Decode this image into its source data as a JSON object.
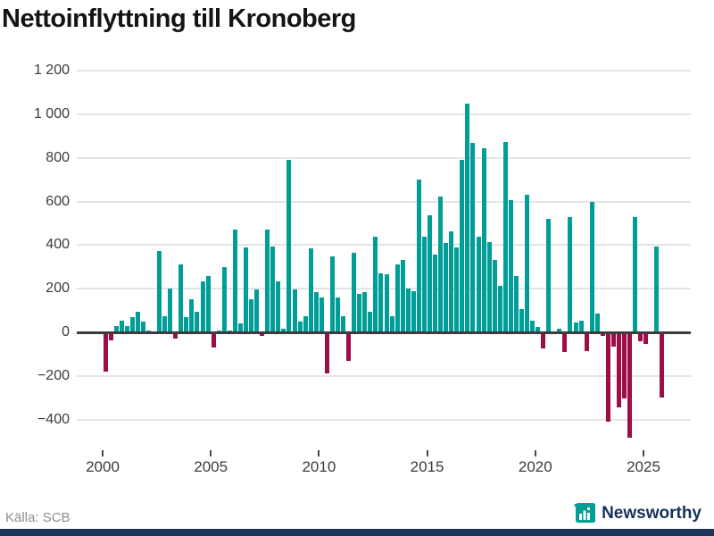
{
  "chart": {
    "title": "Nettoinflyttning till Kronoberg",
    "colors": {
      "positive_bar": "#009E96",
      "negative_bar": "#9E0D47",
      "zero_line": "#3c3c3c",
      "gridline": "#e4e4e4",
      "axis_text": "#3a3a3a",
      "title_text": "#141414",
      "source_text": "#8e8e8e",
      "brand_navy": "#16325b"
    },
    "y_axis": {
      "tick_labels": [
        "1 200",
        "1 000",
        "800",
        "600",
        "400",
        "200",
        "0",
        "−200",
        "−400"
      ],
      "tick_values": [
        1200,
        1000,
        800,
        600,
        400,
        200,
        0,
        -200,
        -400
      ]
    },
    "x_axis": {
      "tick_labels": [
        "2000",
        "2005",
        "2010",
        "2015",
        "2020",
        "2025"
      ],
      "tick_values": [
        2000,
        2005,
        2010,
        2015,
        2020,
        2025
      ]
    }
  },
  "chart_data": {
    "type": "bar",
    "title": "Nettoinflyttning till Kronoberg",
    "xlabel": "",
    "ylabel": "",
    "frequency": "quarterly",
    "ylim": [
      -500,
      1250
    ],
    "grid": "horizontal",
    "legend": "none",
    "categories": [
      "2000 Q1",
      "2000 Q2",
      "2000 Q3",
      "2000 Q4",
      "2001 Q1",
      "2001 Q2",
      "2001 Q3",
      "2001 Q4",
      "2002 Q1",
      "2002 Q2",
      "2002 Q3",
      "2002 Q4",
      "2003 Q1",
      "2003 Q2",
      "2003 Q3",
      "2003 Q4",
      "2004 Q1",
      "2004 Q2",
      "2004 Q3",
      "2004 Q4",
      "2005 Q1",
      "2005 Q2",
      "2005 Q3",
      "2005 Q4",
      "2006 Q1",
      "2006 Q2",
      "2006 Q3",
      "2006 Q4",
      "2007 Q1",
      "2007 Q2",
      "2007 Q3",
      "2007 Q4",
      "2008 Q1",
      "2008 Q2",
      "2008 Q3",
      "2008 Q4",
      "2009 Q1",
      "2009 Q2",
      "2009 Q3",
      "2009 Q4",
      "2010 Q1",
      "2010 Q2",
      "2010 Q3",
      "2010 Q4",
      "2011 Q1",
      "2011 Q2",
      "2011 Q3",
      "2011 Q4",
      "2012 Q1",
      "2012 Q2",
      "2012 Q3",
      "2012 Q4",
      "2013 Q1",
      "2013 Q2",
      "2013 Q3",
      "2013 Q4",
      "2014 Q1",
      "2014 Q2",
      "2014 Q3",
      "2014 Q4",
      "2015 Q1",
      "2015 Q2",
      "2015 Q3",
      "2015 Q4",
      "2016 Q1",
      "2016 Q2",
      "2016 Q3",
      "2016 Q4",
      "2017 Q1",
      "2017 Q2",
      "2017 Q3",
      "2017 Q4",
      "2018 Q1",
      "2018 Q2",
      "2018 Q3",
      "2018 Q4",
      "2019 Q1",
      "2019 Q2",
      "2019 Q3",
      "2019 Q4",
      "2020 Q1",
      "2020 Q2",
      "2020 Q3",
      "2020 Q4",
      "2021 Q1",
      "2021 Q2",
      "2021 Q3",
      "2021 Q4",
      "2022 Q1",
      "2022 Q2",
      "2022 Q3",
      "2022 Q4",
      "2023 Q1",
      "2023 Q2",
      "2023 Q3",
      "2023 Q4",
      "2024 Q1",
      "2024 Q2",
      "2024 Q3",
      "2024 Q4",
      "2025 Q1",
      "2025 Q2",
      "2025 Q3",
      "2025 Q4"
    ],
    "values": [
      -180,
      -35,
      30,
      55,
      30,
      70,
      95,
      50,
      10,
      0,
      375,
      75,
      200,
      -30,
      310,
      70,
      150,
      95,
      235,
      260,
      -70,
      10,
      300,
      10,
      470,
      40,
      390,
      150,
      195,
      -15,
      470,
      395,
      235,
      15,
      790,
      195,
      50,
      75,
      385,
      185,
      160,
      -190,
      350,
      160,
      75,
      -130,
      365,
      175,
      185,
      95,
      440,
      270,
      265,
      75,
      310,
      330,
      200,
      190,
      700,
      440,
      535,
      355,
      625,
      410,
      465,
      390,
      790,
      1050,
      870,
      440,
      845,
      415,
      330,
      215,
      875,
      605,
      260,
      105,
      630,
      55,
      25,
      -75,
      520,
      0,
      15,
      -90,
      530,
      45,
      55,
      -85,
      600,
      85,
      -15,
      -410,
      -65,
      -345,
      -305,
      -485,
      530,
      -40,
      -55,
      0,
      395,
      -300
    ]
  },
  "footer": {
    "source": "Källa: SCB",
    "brand": "Newsworthy"
  }
}
